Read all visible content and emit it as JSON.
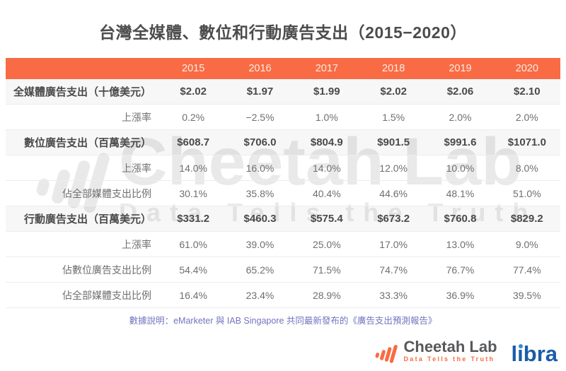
{
  "page": {
    "title": "台灣全媒體、數位和行動廣告支出（2015−2020）"
  },
  "table": {
    "corner": "",
    "years": [
      "2015",
      "2016",
      "2017",
      "2018",
      "2019",
      "2020"
    ],
    "rows": [
      {
        "label": "全媒體廣告支出（十億美元）",
        "bold": true,
        "values": [
          "$2.02",
          "$1.97",
          "$1.99",
          "$2.02",
          "$2.06",
          "$2.10"
        ]
      },
      {
        "label": "上漲率",
        "bold": false,
        "values": [
          "0.2%",
          "−2.5%",
          "1.0%",
          "1.5%",
          "2.0%",
          "2.0%"
        ]
      },
      {
        "label": "數位廣告支出（百萬美元）",
        "bold": true,
        "values": [
          "$608.7",
          "$706.0",
          "$804.9",
          "$901.5",
          "$991.6",
          "$1071.0"
        ]
      },
      {
        "label": "上漲率",
        "bold": false,
        "values": [
          "14.0%",
          "16.0%",
          "14.0%",
          "12.0%",
          "10.0%",
          "8.0%"
        ]
      },
      {
        "label": "佔全部媒體支出比例",
        "bold": false,
        "values": [
          "30.1%",
          "35.8%",
          "40.4%",
          "44.6%",
          "48.1%",
          "51.0%"
        ]
      },
      {
        "label": "行動廣告支出（百萬美元）",
        "bold": true,
        "values": [
          "$331.2",
          "$460.3",
          "$575.4",
          "$673.2",
          "$760.8",
          "$829.2"
        ]
      },
      {
        "label": "上漲率",
        "bold": false,
        "values": [
          "61.0%",
          "39.0%",
          "25.0%",
          "17.0%",
          "13.0%",
          "9.0%"
        ]
      },
      {
        "label": "佔數位廣告支出比例",
        "bold": false,
        "values": [
          "54.4%",
          "65.2%",
          "71.5%",
          "74.7%",
          "76.7%",
          "77.4%"
        ]
      },
      {
        "label": "佔全部媒體支出比例",
        "bold": false,
        "values": [
          "16.4%",
          "23.4%",
          "28.9%",
          "33.3%",
          "36.9%",
          "39.5%"
        ]
      }
    ]
  },
  "footnote": "數據說明：eMarketer 與 IAB Singapore 共同最新發布的《廣告支出預測報告》",
  "watermark": {
    "brand": "Cheetah Lab",
    "tagline": "Data Tells the Truth"
  },
  "branding": {
    "logo_name": "Cheetah Lab",
    "logo_tagline": "Data Tells the Truth",
    "partner_logo": "libra"
  },
  "colors": {
    "accent_orange": "#f96b44",
    "header_text": "#fdece4",
    "category_text": "#4a4a4a",
    "body_text": "#6f6f6f",
    "footnote_purple": "#7274bf",
    "watermark_gray": "#e9e9e9",
    "libra_blue": "#1c5ca8",
    "libra_dot_blue": "#2f8fd0"
  },
  "chart_data": {
    "type": "table",
    "title": "台灣全媒體、數位和行動廣告支出（2015−2020）",
    "categories": [
      2015,
      2016,
      2017,
      2018,
      2019,
      2020
    ],
    "series": [
      {
        "name": "全媒體廣告支出（十億美元）",
        "unit": "USD billion",
        "values": [
          2.02,
          1.97,
          1.99,
          2.02,
          2.06,
          2.1
        ]
      },
      {
        "name": "全媒體廣告支出上漲率（%）",
        "values": [
          0.2,
          -2.5,
          1.0,
          1.5,
          2.0,
          2.0
        ]
      },
      {
        "name": "數位廣告支出（百萬美元）",
        "unit": "USD million",
        "values": [
          608.7,
          706.0,
          804.9,
          901.5,
          991.6,
          1071.0
        ]
      },
      {
        "name": "數位廣告支出上漲率（%）",
        "values": [
          14.0,
          16.0,
          14.0,
          12.0,
          10.0,
          8.0
        ]
      },
      {
        "name": "數位廣告支出佔全部媒體支出比例（%）",
        "values": [
          30.1,
          35.8,
          40.4,
          44.6,
          48.1,
          51.0
        ]
      },
      {
        "name": "行動廣告支出（百萬美元）",
        "unit": "USD million",
        "values": [
          331.2,
          460.3,
          575.4,
          673.2,
          760.8,
          829.2
        ]
      },
      {
        "name": "行動廣告支出上漲率（%）",
        "values": [
          61.0,
          39.0,
          25.0,
          17.0,
          13.0,
          9.0
        ]
      },
      {
        "name": "行動廣告支出佔數位廣告支出比例（%）",
        "values": [
          54.4,
          65.2,
          71.5,
          74.7,
          76.7,
          77.4
        ]
      },
      {
        "name": "行動廣告支出佔全部媒體支出比例（%）",
        "values": [
          16.4,
          23.4,
          28.9,
          33.3,
          36.9,
          39.5
        ]
      }
    ],
    "source_note": "數據說明：eMarketer 與 IAB Singapore 共同最新發布的《廣告支出預測報告》"
  }
}
